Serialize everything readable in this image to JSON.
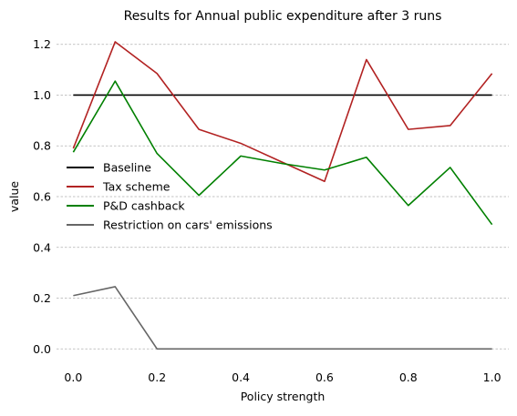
{
  "chart_data": {
    "type": "line",
    "title": "Results for Annual public expenditure after 3 runs",
    "xlabel": "Policy strength",
    "ylabel": "value",
    "xlim": [
      -0.04,
      1.04
    ],
    "ylim": [
      -0.06,
      1.26
    ],
    "xticks": [
      "0.0",
      "0.2",
      "0.4",
      "0.6",
      "0.8",
      "1.0"
    ],
    "yticks": [
      "0.0",
      "0.2",
      "0.4",
      "0.6",
      "0.8",
      "1.0",
      "1.2"
    ],
    "grid": "horizontal",
    "legend_position": "center-left",
    "x": [
      0.0,
      0.1,
      0.2,
      0.3,
      0.4,
      0.5,
      0.6,
      0.7,
      0.8,
      0.9,
      1.0
    ],
    "series": [
      {
        "name": "Baseline",
        "color": "#000000",
        "values": [
          1.0,
          1.0,
          1.0,
          1.0,
          1.0,
          1.0,
          1.0,
          1.0,
          1.0,
          1.0,
          1.0
        ]
      },
      {
        "name": "Tax scheme",
        "color": "#b22222",
        "values": [
          0.79,
          1.21,
          1.085,
          0.865,
          0.81,
          0.735,
          0.66,
          1.14,
          0.865,
          0.88,
          1.085
        ]
      },
      {
        "name": "P&D cashback",
        "color": "#008000",
        "values": [
          0.775,
          1.055,
          0.77,
          0.605,
          0.76,
          0.73,
          0.705,
          0.755,
          0.565,
          0.715,
          0.49
        ]
      },
      {
        "name": "Restriction on cars' emissions",
        "color": "#666666",
        "values": [
          0.21,
          0.245,
          0.0,
          0.0,
          0.0,
          0.0,
          0.0,
          0.0,
          0.0,
          0.0,
          0.0
        ]
      }
    ]
  }
}
